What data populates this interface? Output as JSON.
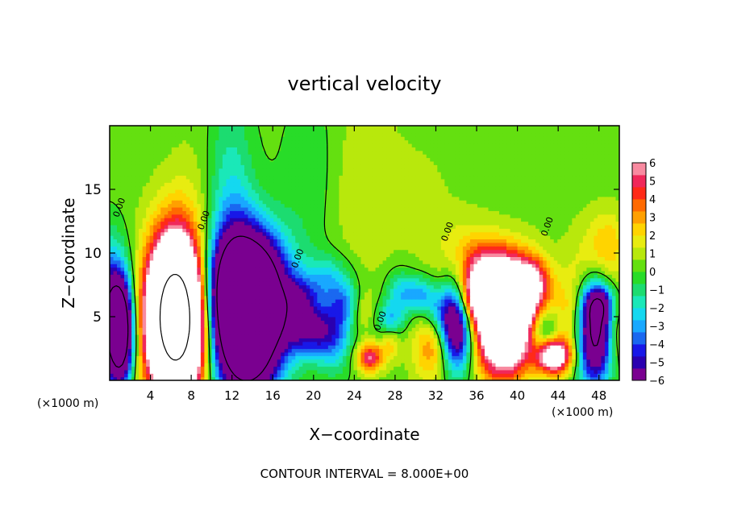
{
  "chart_data": {
    "type": "heatmap",
    "title": "vertical velocity",
    "xlabel": "X−coordinate",
    "ylabel": "Z−coordinate",
    "x_unit_left": "(×1000 m)",
    "x_unit_right": "(×1000 m)",
    "footer": "CONTOUR INTERVAL = 8.000E+00",
    "xlim": [
      0,
      50
    ],
    "ylim": [
      0,
      20
    ],
    "x_ticks": [
      4,
      8,
      12,
      16,
      20,
      24,
      28,
      32,
      36,
      40,
      44,
      48
    ],
    "x_tick_labels": [
      "4",
      "8",
      "12",
      "16",
      "20",
      "24",
      "28",
      "32",
      "36",
      "40",
      "44",
      "48"
    ],
    "y_ticks": [
      5,
      10,
      15
    ],
    "y_tick_labels": [
      "5",
      "10",
      "15"
    ],
    "contour_interval": 8.0,
    "contour_labels": [
      {
        "text": "0.00",
        "x": 1.2,
        "z": 13.5
      },
      {
        "text": "0.00",
        "x": 9.5,
        "z": 12.5
      },
      {
        "text": "0.00",
        "x": 18.7,
        "z": 9.5
      },
      {
        "text": "0.00",
        "x": 26.8,
        "z": 4.6
      },
      {
        "text": "0.00",
        "x": 33.4,
        "z": 11.6
      },
      {
        "text": "0.00",
        "x": 43.2,
        "z": 12.0
      }
    ],
    "colorbar": {
      "min": -6,
      "max": 6,
      "labels": [
        "6",
        "5",
        "4",
        "3",
        "2",
        "1",
        "0",
        "−1",
        "−2",
        "−3",
        "−4",
        "−5",
        "−6"
      ],
      "colors": [
        "#7a0090",
        "#2a00b0",
        "#1818e8",
        "#1a68f0",
        "#19a8ff",
        "#14d8f0",
        "#1ae8b8",
        "#1cdc70",
        "#28dc28",
        "#64e010",
        "#b8e80c",
        "#e8ec10",
        "#ffd400",
        "#ffa000",
        "#ff6a00",
        "#ff2a18",
        "#f0285a",
        "#f88aa0"
      ]
    },
    "features": [
      {
        "kind": "updraft",
        "x": 6.5,
        "z": 5.0,
        "peak": 22
      },
      {
        "kind": "downdraft",
        "x": 1.0,
        "z": 3.8,
        "peak": -12
      },
      {
        "kind": "downdraft",
        "x": 13.5,
        "z": 5.0,
        "peak": -18
      },
      {
        "kind": "downdraft",
        "x": 19.5,
        "z": 4.0,
        "peak": -5
      },
      {
        "kind": "updraft",
        "x": 25.0,
        "z": 2.0,
        "peak": 5
      },
      {
        "kind": "downdraft",
        "x": 34.0,
        "z": 4.5,
        "peak": -9
      },
      {
        "kind": "updraft",
        "x": 38.5,
        "z": 4.5,
        "peak": 12
      },
      {
        "kind": "updraft",
        "x": 43.5,
        "z": 2.0,
        "peak": 8
      },
      {
        "kind": "downdraft",
        "x": 47.5,
        "z": 3.8,
        "peak": -10
      }
    ]
  }
}
